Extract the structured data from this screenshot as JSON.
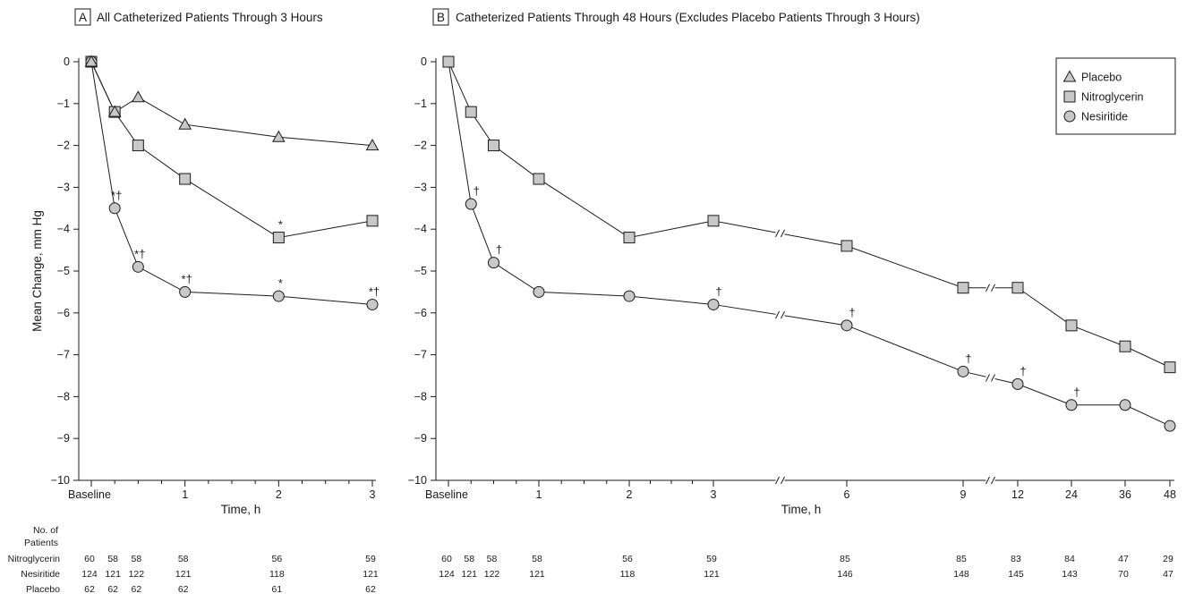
{
  "chart_data": [
    {
      "type": "line",
      "panel_letter": "A",
      "title": "All Catheterized Patients Through 3 Hours",
      "xlabel": "Time, h",
      "ylabel": "Mean Change, mm Hg",
      "ylim": [
        -10,
        0
      ],
      "yticks": [
        0,
        -1,
        -2,
        -3,
        -4,
        -5,
        -6,
        -7,
        -8,
        -9,
        -10
      ],
      "xlim": [
        0,
        3
      ],
      "xtick_labels": [
        {
          "t": 0,
          "label": "Baseline"
        },
        {
          "t": 1,
          "label": "1"
        },
        {
          "t": 2,
          "label": "2"
        },
        {
          "t": 3,
          "label": "3"
        }
      ],
      "series": [
        {
          "name": "Placebo",
          "marker": "triangle",
          "x": [
            0,
            0.25,
            0.5,
            1,
            2,
            3
          ],
          "y": [
            0,
            -1.2,
            -0.85,
            -1.5,
            -1.8,
            -2.0
          ]
        },
        {
          "name": "Nitroglycerin",
          "marker": "square",
          "x": [
            0,
            0.25,
            0.5,
            1,
            2,
            3
          ],
          "y": [
            0,
            -1.2,
            -2.0,
            -2.8,
            -4.2,
            -3.8
          ]
        },
        {
          "name": "Nesiritide",
          "marker": "circle",
          "x": [
            0,
            0.25,
            0.5,
            1,
            2,
            3
          ],
          "y": [
            0,
            -3.5,
            -4.9,
            -5.5,
            -5.6,
            -5.8
          ]
        }
      ],
      "annotations": [
        {
          "x": 0.25,
          "y": -3.5,
          "text": "*†"
        },
        {
          "x": 0.5,
          "y": -4.9,
          "text": "*†"
        },
        {
          "x": 1,
          "y": -5.5,
          "text": "*†"
        },
        {
          "x": 2,
          "y": -5.6,
          "text": "*"
        },
        {
          "x": 3,
          "y": -5.8,
          "text": "*†"
        },
        {
          "x": 2,
          "y": -4.2,
          "text": "*"
        }
      ],
      "patients": {
        "header_line1": "No. of",
        "header_line2": "Patients",
        "x": [
          0,
          0.25,
          0.5,
          1,
          2,
          3
        ],
        "rows": [
          {
            "name": "Nitroglycerin",
            "values": [
              60,
              58,
              58,
              58,
              56,
              59
            ]
          },
          {
            "name": "Nesiritide",
            "values": [
              124,
              121,
              122,
              121,
              118,
              121
            ]
          },
          {
            "name": "Placebo",
            "values": [
              62,
              62,
              62,
              62,
              61,
              62
            ]
          }
        ]
      }
    },
    {
      "type": "line",
      "panel_letter": "B",
      "title": "Catheterized Patients Through 48 Hours (Excludes Placebo Patients Through 3 Hours)",
      "xlabel": "Time, h",
      "ylabel": "",
      "ylim": [
        -10,
        0
      ],
      "yticks": [
        0,
        -1,
        -2,
        -3,
        -4,
        -5,
        -6,
        -7,
        -8,
        -9,
        -10
      ],
      "axis_breaks_after_hours": [
        3,
        9,
        12
      ],
      "xtick_labels": [
        "Baseline",
        "1",
        "2",
        "3",
        "6",
        "9",
        "12",
        "24",
        "36",
        "48"
      ],
      "series": [
        {
          "name": "Nitroglycerin",
          "marker": "square",
          "x": [
            0,
            0.25,
            0.5,
            1,
            2,
            3,
            6,
            9,
            12,
            24,
            36,
            48
          ],
          "y": [
            0,
            -1.2,
            -2.0,
            -2.8,
            -4.2,
            -3.8,
            -4.4,
            -5.4,
            -5.4,
            -6.3,
            -6.8,
            -7.3
          ]
        },
        {
          "name": "Nesiritide",
          "marker": "circle",
          "x": [
            0,
            0.25,
            0.5,
            1,
            2,
            3,
            6,
            9,
            12,
            24,
            36,
            48
          ],
          "y": [
            0,
            -3.4,
            -4.8,
            -5.5,
            -5.6,
            -5.8,
            -6.3,
            -7.4,
            -7.7,
            -8.2,
            -8.2,
            -8.7
          ]
        }
      ],
      "annotations": [
        {
          "x": 0.25,
          "y": -3.4,
          "text": "†"
        },
        {
          "x": 0.5,
          "y": -4.8,
          "text": "†"
        },
        {
          "x": 3,
          "y": -5.8,
          "text": "†"
        },
        {
          "x": 6,
          "y": -6.3,
          "text": "†"
        },
        {
          "x": 9,
          "y": -7.4,
          "text": "†"
        },
        {
          "x": 12,
          "y": -7.7,
          "text": "†"
        },
        {
          "x": 24,
          "y": -8.2,
          "text": "†"
        }
      ],
      "legend": {
        "placement": "top-right",
        "entries": [
          {
            "name": "Placebo",
            "marker": "triangle"
          },
          {
            "name": "Nitroglycerin",
            "marker": "square"
          },
          {
            "name": "Nesiritide",
            "marker": "circle"
          }
        ]
      },
      "patients": {
        "x": [
          0,
          0.25,
          0.5,
          1,
          2,
          3,
          6,
          9,
          12,
          24,
          36,
          48
        ],
        "rows": [
          {
            "name": "Nitroglycerin",
            "values": [
              60,
              58,
              58,
              58,
              56,
              59,
              85,
              85,
              83,
              84,
              47,
              29
            ]
          },
          {
            "name": "Nesiritide",
            "values": [
              124,
              121,
              122,
              121,
              118,
              121,
              146,
              148,
              145,
              143,
              70,
              47
            ]
          }
        ]
      }
    }
  ],
  "colors": {
    "marker_fill": "#c8c8c8",
    "stroke": "#1a1a1a"
  }
}
